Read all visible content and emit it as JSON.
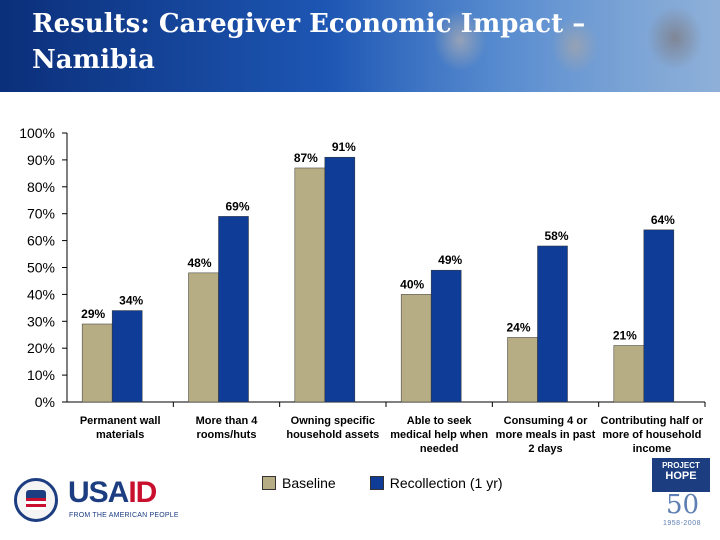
{
  "slide": {
    "title": "Results: Caregiver Economic Impact –\nNamibia"
  },
  "chart_data": {
    "type": "bar",
    "title": "",
    "xlabel": "",
    "ylabel": "",
    "ylim": [
      0,
      100
    ],
    "yticks": [
      "0%",
      "10%",
      "20%",
      "30%",
      "40%",
      "50%",
      "60%",
      "70%",
      "80%",
      "90%",
      "100%"
    ],
    "categories": [
      [
        "Permanent wall",
        "materials"
      ],
      [
        "More than 4",
        "rooms/huts"
      ],
      [
        "Owning specific",
        "household assets"
      ],
      [
        "Able to seek",
        "medical help when",
        "needed"
      ],
      [
        "Consuming 4 or",
        "more meals in past",
        "2 days"
      ],
      [
        "Contributing half or",
        "more of household",
        "income"
      ]
    ],
    "series": [
      {
        "name": "Baseline",
        "color": "#b7ad84",
        "values": [
          29,
          48,
          87,
          40,
          24,
          21
        ],
        "labels": [
          "29%",
          "48%",
          "87%",
          "40%",
          "24%",
          "21%"
        ]
      },
      {
        "name": "Recollection (1 yr)",
        "color": "#0e3c96",
        "values": [
          34,
          69,
          91,
          49,
          58,
          64
        ],
        "labels": [
          "34%",
          "69%",
          "91%",
          "49%",
          "58%",
          "64%"
        ]
      }
    ],
    "legend_position": "bottom"
  },
  "logos": {
    "usaid": {
      "word_blue": "USA",
      "word_red": "ID",
      "tagline": "FROM THE AMERICAN PEOPLE"
    },
    "project_hope": {
      "box_line1": "PROJECT",
      "box_line2": "HOPE",
      "number": "50",
      "years": "1958-2008"
    }
  }
}
